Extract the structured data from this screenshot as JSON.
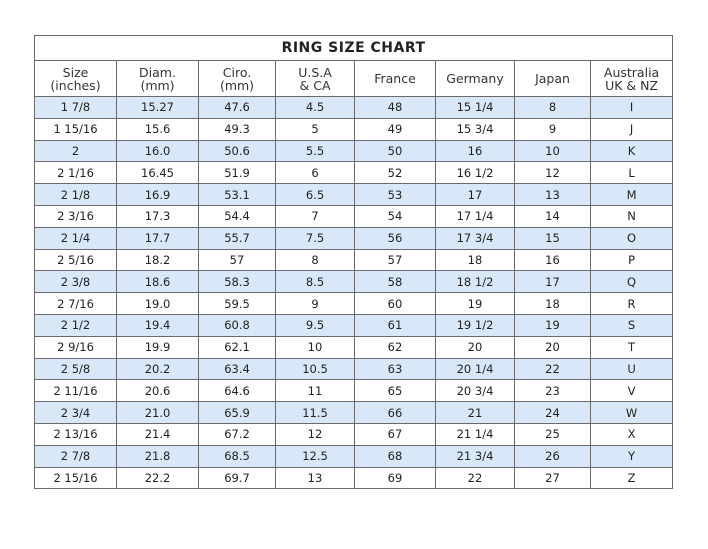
{
  "title": "RING SIZE CHART",
  "columns": [
    "Size\n(inches)",
    "Diam.\n(mm)",
    "Ciro.\n(mm)",
    "U.S.A\n& CA",
    "France",
    "Germany",
    "Japan",
    "Australia\nUK & NZ"
  ],
  "row_highlight_color": "#d8e8f8",
  "rows": [
    [
      "1 7/8",
      "15.27",
      "47.6",
      "4.5",
      "48",
      "15 1/4",
      "8",
      "I"
    ],
    [
      "1 15/16",
      "15.6",
      "49.3",
      "5",
      "49",
      "15 3/4",
      "9",
      "J"
    ],
    [
      "2",
      "16.0",
      "50.6",
      "5.5",
      "50",
      "16",
      "10",
      "K"
    ],
    [
      "2 1/16",
      "16.45",
      "51.9",
      "6",
      "52",
      "16 1/2",
      "12",
      "L"
    ],
    [
      "2 1/8",
      "16.9",
      "53.1",
      "6.5",
      "53",
      "17",
      "13",
      "M"
    ],
    [
      "2 3/16",
      "17.3",
      "54.4",
      "7",
      "54",
      "17 1/4",
      "14",
      "N"
    ],
    [
      "2 1/4",
      "17.7",
      "55.7",
      "7.5",
      "56",
      "17 3/4",
      "15",
      "O"
    ],
    [
      "2 5/16",
      "18.2",
      "57",
      "8",
      "57",
      "18",
      "16",
      "P"
    ],
    [
      "2 3/8",
      "18.6",
      "58.3",
      "8.5",
      "58",
      "18 1/2",
      "17",
      "Q"
    ],
    [
      "2 7/16",
      "19.0",
      "59.5",
      "9",
      "60",
      "19",
      "18",
      "R"
    ],
    [
      "2 1/2",
      "19.4",
      "60.8",
      "9.5",
      "61",
      "19 1/2",
      "19",
      "S"
    ],
    [
      "2 9/16",
      "19.9",
      "62.1",
      "10",
      "62",
      "20",
      "20",
      "T"
    ],
    [
      "2 5/8",
      "20.2",
      "63.4",
      "10.5",
      "63",
      "20 1/4",
      "22",
      "U"
    ],
    [
      "2 11/16",
      "20.6",
      "64.6",
      "11",
      "65",
      "20 3/4",
      "23",
      "V"
    ],
    [
      "2 3/4",
      "21.0",
      "65.9",
      "11.5",
      "66",
      "21",
      "24",
      "W"
    ],
    [
      "2 13/16",
      "21.4",
      "67.2",
      "12",
      "67",
      "21 1/4",
      "25",
      "X"
    ],
    [
      "2 7/8",
      "21.8",
      "68.5",
      "12.5",
      "68",
      "21 3/4",
      "26",
      "Y"
    ],
    [
      "2 15/16",
      "22.2",
      "69.7",
      "13",
      "69",
      "22",
      "27",
      "Z"
    ]
  ]
}
